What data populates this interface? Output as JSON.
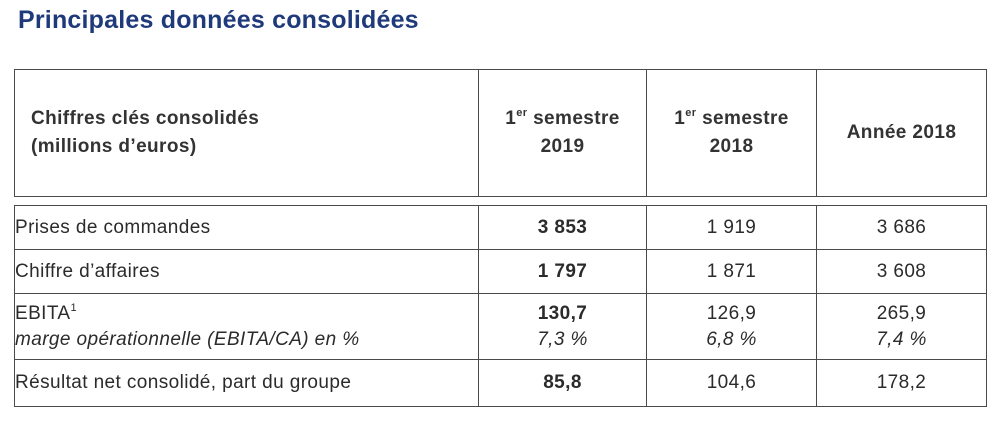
{
  "title": "Principales données consolidées",
  "table": {
    "header": {
      "col1_line1": "Chiffres clés consolidés",
      "col1_line2": "(millions d’euros)",
      "col2_prefix": "1",
      "col2_sup": "er",
      "col2_line1_rest": " semestre",
      "col2_line2": "2019",
      "col3_prefix": "1",
      "col3_sup": "er",
      "col3_line1_rest": " semestre",
      "col3_line2": "2018",
      "col4": "Année 2018"
    },
    "rows": [
      {
        "label": "Prises de commandes",
        "h1_2019": "3 853",
        "h1_2018": "1 919",
        "y2018": "3 686"
      },
      {
        "label": "Chiffre d’affaires",
        "h1_2019": "1 797",
        "h1_2018": "1 871",
        "y2018": "3 608"
      },
      {
        "label": "EBITA",
        "label_sup": "1",
        "sublabel": "marge opérationnelle (EBITA/CA) en %",
        "h1_2019": "130,7",
        "h1_2019_sub": "7,3 %",
        "h1_2018": "126,9",
        "h1_2018_sub": "6,8 %",
        "y2018": "265,9",
        "y2018_sub": "7,4 %"
      },
      {
        "label": "Résultat net consolidé, part du groupe",
        "h1_2019": "85,8",
        "h1_2018": "104,6",
        "y2018": "178,2"
      }
    ]
  }
}
